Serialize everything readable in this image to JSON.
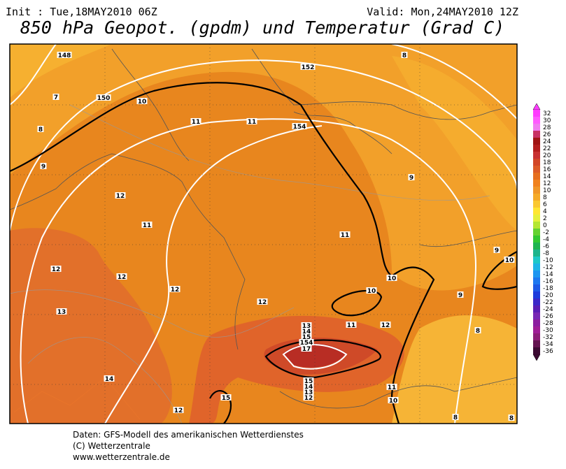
{
  "header": {
    "init": "Init : Tue,18MAY2010 06Z",
    "valid": "Valid: Mon,24MAY2010 12Z",
    "title": "850 hPa Geopot. (gpdm) und Temperatur (Grad C)"
  },
  "map": {
    "labels": [
      "148",
      "152",
      "8",
      "7",
      "150",
      "10",
      "11",
      "11",
      "154",
      "8",
      "9",
      "9",
      "12",
      "11",
      "11",
      "9",
      "10",
      "12",
      "12",
      "10",
      "12",
      "10",
      "9",
      "12",
      "13",
      "11",
      "12",
      "13",
      "14",
      "15",
      "154",
      "17",
      "8",
      "15",
      "14",
      "13",
      "12",
      "14",
      "11",
      "15",
      "10",
      "12",
      "8",
      "8"
    ]
  },
  "colorbar": {
    "levels": [
      32,
      30,
      28,
      26,
      24,
      22,
      20,
      18,
      16,
      14,
      12,
      10,
      8,
      6,
      4,
      2,
      0,
      -2,
      -4,
      -6,
      -8,
      -10,
      -12,
      -14,
      -16,
      -18,
      -20,
      -22,
      -24,
      -26,
      -28,
      -30,
      -32,
      -34,
      -36
    ],
    "colors": [
      "#ff3cff",
      "#ff5aff",
      "#f07cf0",
      "#c83264",
      "#a01414",
      "#b41e1e",
      "#c83232",
      "#d24628",
      "#dc5a28",
      "#e66e1e",
      "#f0821e",
      "#f09628",
      "#f5aa28",
      "#fac832",
      "#ffe632",
      "#e6f03c",
      "#b4e632",
      "#64d232",
      "#32c832",
      "#1eb450",
      "#1eb48c",
      "#1ec8c8",
      "#1eb4e6",
      "#1e96f0",
      "#1e78f0",
      "#1e5ae6",
      "#1e3cdc",
      "#3c28c8",
      "#5a1eb4",
      "#7828b4",
      "#8c1ea0",
      "#a01e96",
      "#8c1e78",
      "#641450",
      "#3c0a32"
    ]
  },
  "footer": {
    "lines": [
      "Daten: GFS-Modell des amerikanischen Wetterdienstes",
      "(C) Wetterzentrale",
      "www.wetterzentrale.de"
    ]
  }
}
